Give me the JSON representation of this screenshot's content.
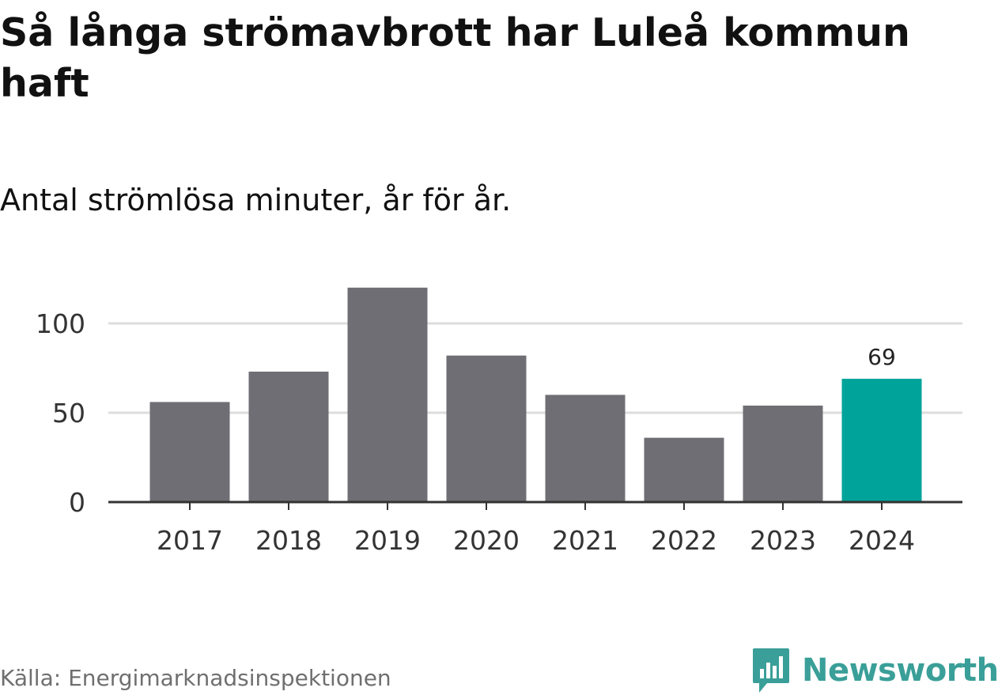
{
  "title": "Så långa strömavbrott har Luleå kommun haft",
  "subtitle": "Antal strömlösa minuter, år för år.",
  "source": "Källa: Energimarknadsinspektionen",
  "brand": "Newsworthy",
  "colors": {
    "bar": "#6f6e74",
    "highlight": "#00a39a",
    "grid": "#dddddd",
    "axis": "#333333",
    "brand": "#3a9f98"
  },
  "chart_data": {
    "type": "bar",
    "title": "Så långa strömavbrott har Luleå kommun haft",
    "subtitle": "Antal strömlösa minuter, år för år.",
    "xlabel": "",
    "ylabel": "",
    "categories": [
      "2017",
      "2018",
      "2019",
      "2020",
      "2021",
      "2022",
      "2023",
      "2024"
    ],
    "values": [
      56,
      73,
      120,
      82,
      60,
      36,
      54,
      69
    ],
    "highlight_index": 7,
    "data_labels": [
      {
        "index": 7,
        "text": "69"
      }
    ],
    "yticks": [
      0,
      50,
      100
    ],
    "ytick_labels": [
      "0",
      "50",
      "100"
    ],
    "ylim": [
      0,
      120
    ],
    "grid": true,
    "legend": "none"
  }
}
